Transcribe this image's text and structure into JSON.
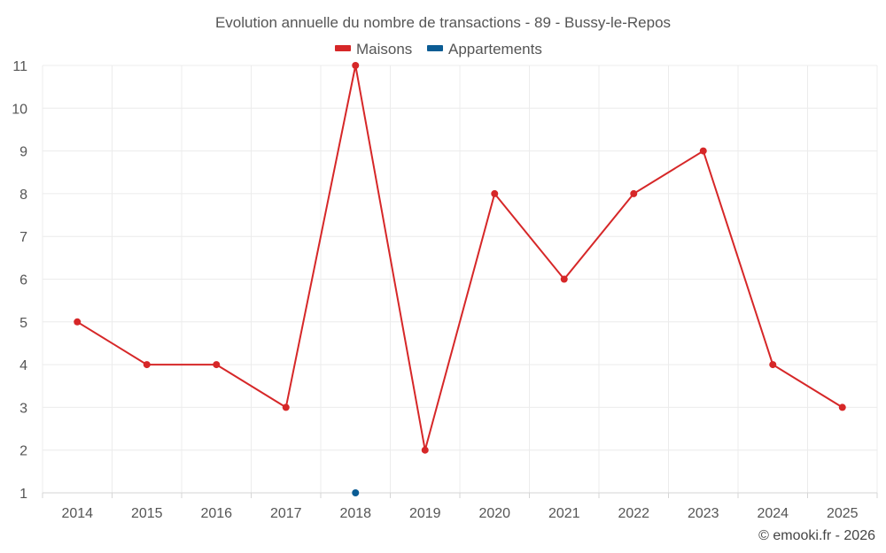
{
  "chart_data": {
    "type": "line",
    "title": "Evolution annuelle du nombre de transactions - 89 - Bussy-le-Repos",
    "categories": [
      "2014",
      "2015",
      "2016",
      "2017",
      "2018",
      "2019",
      "2020",
      "2021",
      "2022",
      "2023",
      "2024",
      "2025"
    ],
    "series": [
      {
        "name": "Maisons",
        "color": "#d62728",
        "values": [
          5,
          4,
          4,
          3,
          11,
          2,
          8,
          6,
          8,
          9,
          4,
          3
        ]
      },
      {
        "name": "Appartements",
        "color": "#0b5c94",
        "values": [
          null,
          null,
          null,
          null,
          1,
          null,
          null,
          null,
          null,
          null,
          null,
          null
        ]
      }
    ],
    "ylim": [
      1,
      11
    ],
    "yticks": [
      "1",
      "2",
      "3",
      "4",
      "5",
      "6",
      "7",
      "8",
      "9",
      "10",
      "11"
    ],
    "grid": true,
    "legend": "top-center",
    "credit": "© emooki.fr - 2026"
  }
}
